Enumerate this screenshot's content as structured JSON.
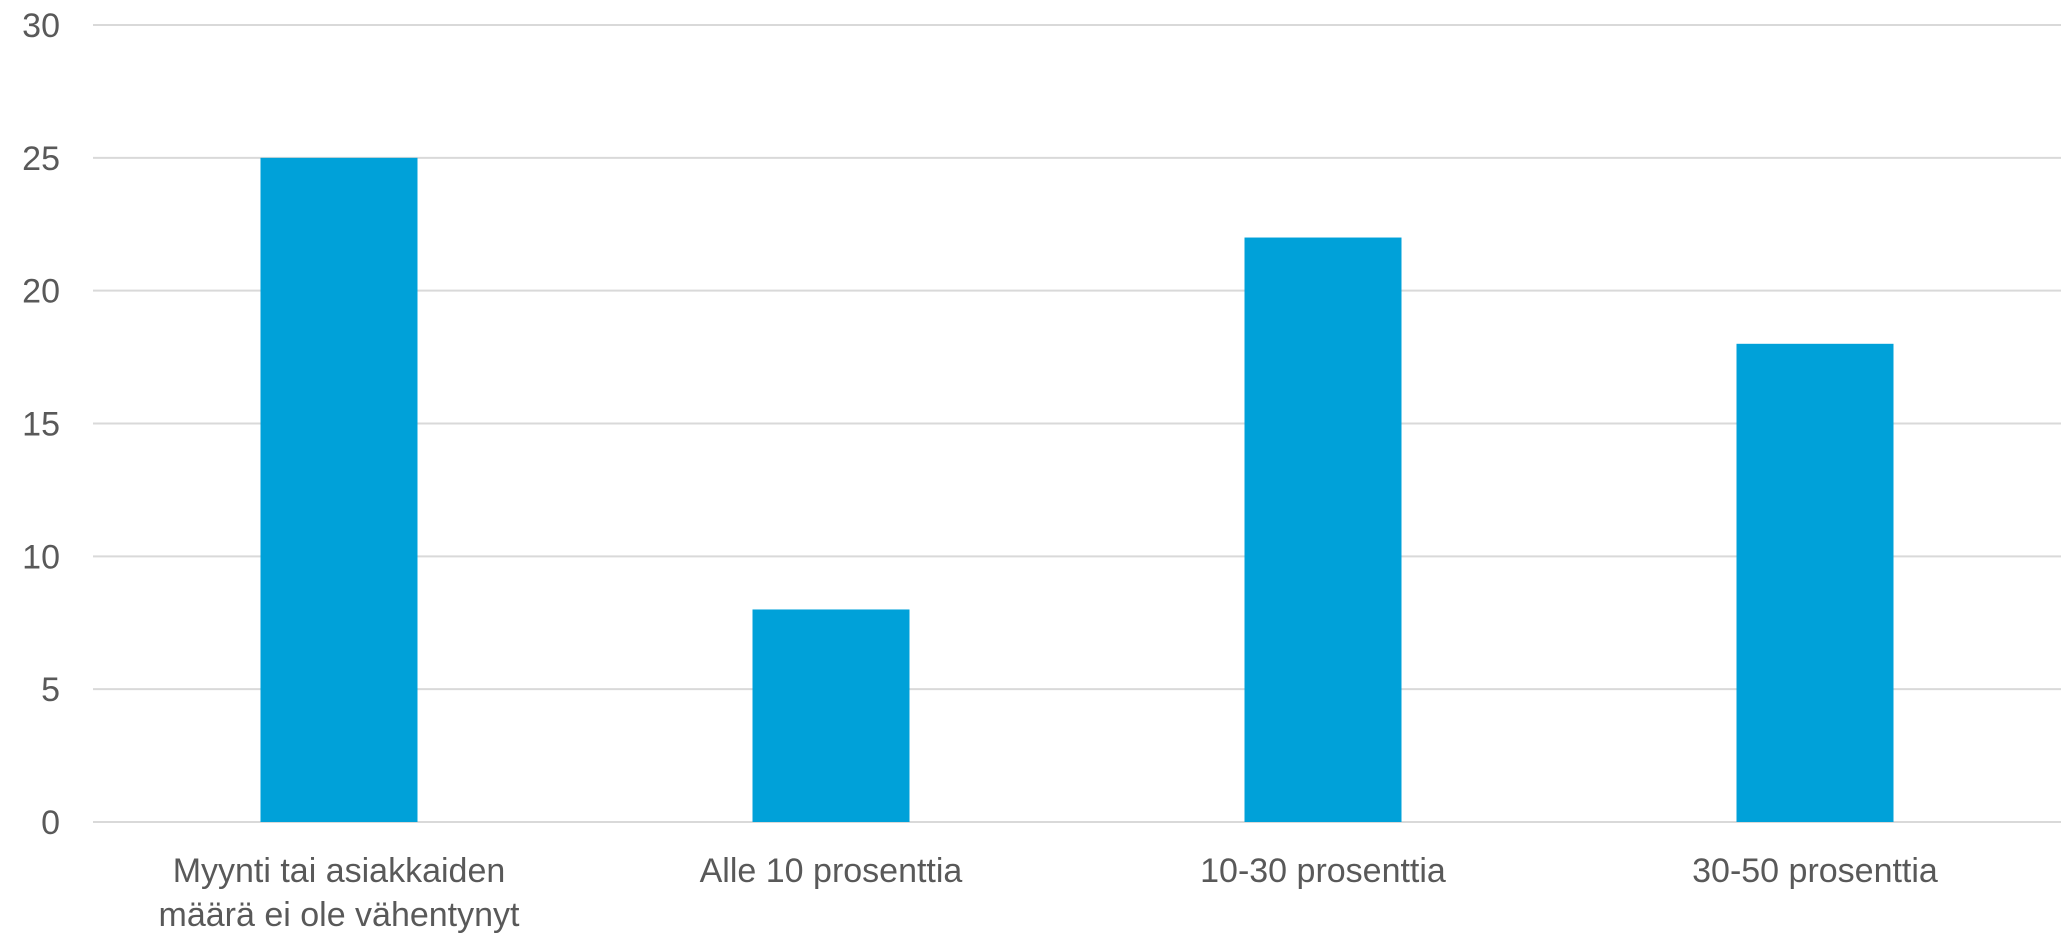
{
  "chart_data": {
    "type": "bar",
    "title": "",
    "xlabel": "",
    "ylabel": "",
    "categories": [
      [
        "Myynti tai asiakkaiden",
        "määrä ei ole vähentynyt"
      ],
      [
        "Alle 10 prosenttia"
      ],
      [
        "10-30 prosenttia"
      ],
      [
        "30-50 prosenttia"
      ]
    ],
    "values": [
      25,
      8,
      22,
      18
    ],
    "ylim": [
      0,
      30
    ],
    "yticks": [
      "0",
      "5",
      "10",
      "15",
      "20",
      "25",
      "30"
    ],
    "grid": true,
    "legend": "none",
    "colors": {
      "bar": "#00a1d9",
      "grid": "#d9d9d9",
      "text": "#595959"
    }
  }
}
